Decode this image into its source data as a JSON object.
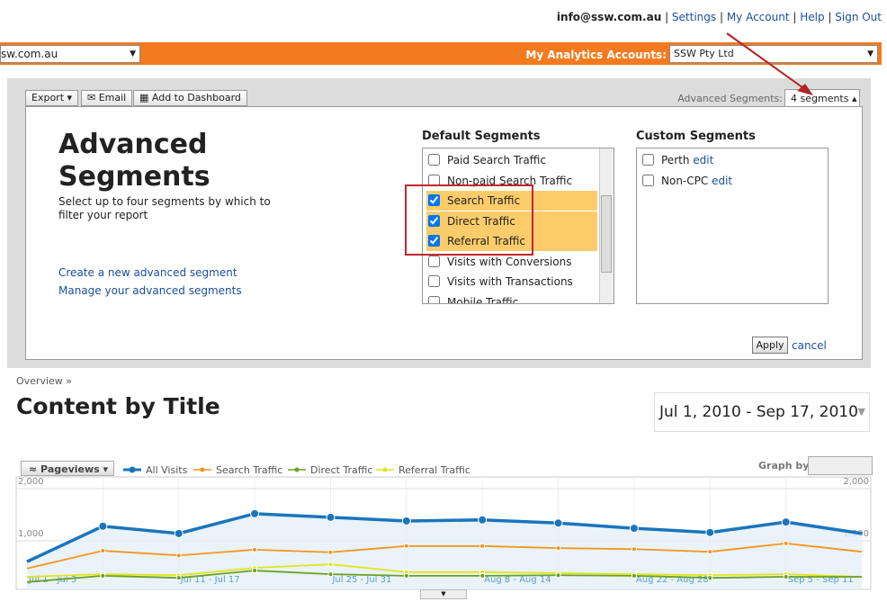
{
  "header": {
    "email": "info@ssw.com.au",
    "links": [
      "Settings",
      "My Account",
      "Help",
      "Sign Out"
    ]
  },
  "account_bar": {
    "site": "sw.com.au",
    "label": "My Analytics Accounts:",
    "account": "SSW Pty Ltd"
  },
  "toolbar": {
    "buttons": [
      "Export",
      "Email",
      "Add to Dashboard"
    ],
    "segments_label": "Advanced Segments:",
    "segments_value": "4 segments"
  },
  "segments_panel": {
    "title": "Advanced Segments",
    "description": "Select up to four segments by which to filter your report",
    "links": [
      "Create a new advanced segment",
      "Manage your advanced segments"
    ],
    "default_heading": "Default Segments",
    "default_segments": [
      {
        "label": "Paid Search Traffic",
        "checked": false
      },
      {
        "label": "Non-paid Search Traffic",
        "checked": false
      },
      {
        "label": "Search Traffic",
        "checked": true
      },
      {
        "label": "Direct Traffic",
        "checked": true
      },
      {
        "label": "Referral Traffic",
        "checked": true
      },
      {
        "label": "Visits with Conversions",
        "checked": false
      },
      {
        "label": "Visits with Transactions",
        "checked": false
      },
      {
        "label": "Mobile Traffic",
        "checked": false
      }
    ],
    "custom_heading": "Custom Segments",
    "custom_segments": [
      {
        "label": "Perth",
        "action": "edit",
        "checked": false
      },
      {
        "label": "Non-CPC",
        "action": "edit",
        "checked": false
      }
    ],
    "apply": "Apply",
    "cancel": "cancel"
  },
  "breadcrumb": "Overview »",
  "page_title": "Content by Title",
  "date_range": "Jul 1, 2010 - Sep 17, 2010",
  "graph_controls": {
    "metric": "Pageviews",
    "graph_by": "Graph by:"
  },
  "chart_data": {
    "type": "line",
    "categories": [
      "Jul 1 - Jul 3",
      null,
      "Jul 11 - Jul 17",
      null,
      "Jul 25 - Jul 31",
      null,
      "Aug 8 - Aug 14",
      null,
      "Aug 22 - Aug 28",
      null,
      "Sep 5 - Sep 11",
      null
    ],
    "series": [
      {
        "name": "All Visits",
        "color": "#1a75bc",
        "values": [
          600,
          1280,
          1140,
          1520,
          1450,
          1380,
          1400,
          1340,
          1240,
          1160,
          1360,
          1140
        ]
      },
      {
        "name": "Search Traffic",
        "color": "#f7941d",
        "values": [
          470,
          810,
          720,
          830,
          780,
          900,
          900,
          860,
          840,
          790,
          950,
          790
        ]
      },
      {
        "name": "Direct Traffic",
        "color": "#6aa121",
        "values": [
          210,
          330,
          290,
          430,
          360,
          330,
          330,
          340,
          330,
          290,
          310,
          310
        ]
      },
      {
        "name": "Referral Traffic",
        "color": "#e3e31c",
        "values": [
          310,
          360,
          340,
          480,
          550,
          400,
          400,
          380,
          360,
          340,
          360,
          310
        ]
      }
    ],
    "ylim": [
      0,
      2000
    ],
    "yticks": [
      {
        "value": 1000,
        "label": "1,000"
      },
      {
        "value": 2000,
        "label": "2,000"
      }
    ],
    "grid": true
  }
}
